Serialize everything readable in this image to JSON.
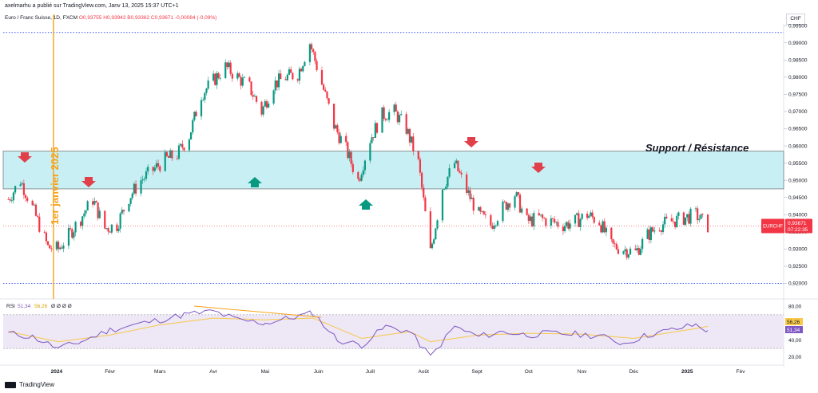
{
  "header": {
    "publish_line": "axelmarhu a publié sur TradingView.com, Janv 13, 2025 15:37 UTC+1"
  },
  "legend": {
    "symbol": "Euro / Franc Suisse, 1D, FXCM",
    "open": "O0,93755",
    "high": "H0,93943",
    "low": "B0,93362",
    "close": "C0,93671",
    "change": "-0,00084 (-0,09%)"
  },
  "currency_button": "CHF",
  "price_tag": {
    "symbol": "EURCHF",
    "price": "0,93671",
    "countdown": "07:22:35"
  },
  "annotations": {
    "support_resistance": "Support / Résistance",
    "date_marker": "1er janvier 2025"
  },
  "rsi_legend": {
    "label": "RSI",
    "rsi_value": "51,34",
    "ma_value": "56,26",
    "placeholders": "Ø Ø Ø Ø"
  },
  "rsi_tags": {
    "ma": "56,26",
    "rsi": "51,34"
  },
  "footer": {
    "brand": "TradingView"
  },
  "colors": {
    "up": "#089981",
    "down": "#f23645",
    "zone_fill": "#c8f0f4",
    "rsi_line": "#7e57c2",
    "rsi_ma": "#f7c948",
    "annotation_orange": "#f7a21b",
    "dotted_line": "#3d5afe"
  },
  "chart_data": [
    {
      "type": "line",
      "title": "",
      "series_name": "EURCHF",
      "x_tick_labels": [
        "2024",
        "Févr",
        "Mars",
        "Avr",
        "Mai",
        "Juin",
        "Juill",
        "Août",
        "Sept",
        "Oct",
        "Nov",
        "Déc",
        "2025",
        "Fév"
      ],
      "y_tick_labels": [
        "0,92000",
        "0,92500",
        "0,93000",
        "0,93500",
        "0,94000",
        "0,94500",
        "0,95000",
        "0,95500",
        "0,96000",
        "0,96500",
        "0,97000",
        "0,97500",
        "0,98000",
        "0,98500",
        "0,99000",
        "0,99500"
      ],
      "ylim": [
        0.9185,
        0.9955
      ],
      "support_resistance_zone": [
        0.9475,
        0.9585
      ],
      "horizontal_levels": [
        0.993,
        0.92
      ],
      "series": [
        {
          "name": "EURCHF close",
          "points": [
            [
              "2023-12-04",
              0.9445
            ],
            [
              "2023-12-11",
              0.95
            ],
            [
              "2023-12-18",
              0.942
            ],
            [
              "2023-12-27",
              0.9305
            ],
            [
              "2024-01-02",
              0.93
            ],
            [
              "2024-01-08",
              0.934
            ],
            [
              "2024-01-15",
              0.939
            ],
            [
              "2024-01-22",
              0.9445
            ],
            [
              "2024-01-29",
              0.936
            ],
            [
              "2024-02-05",
              0.937
            ],
            [
              "2024-02-12",
              0.945
            ],
            [
              "2024-02-19",
              0.95
            ],
            [
              "2024-02-26",
              0.953
            ],
            [
              "2024-03-04",
              0.956
            ],
            [
              "2024-03-11",
              0.9575
            ],
            [
              "2024-03-18",
              0.963
            ],
            [
              "2024-03-25",
              0.975
            ],
            [
              "2024-04-01",
              0.979
            ],
            [
              "2024-04-08",
              0.983
            ],
            [
              "2024-04-15",
              0.98
            ],
            [
              "2024-04-22",
              0.977
            ],
            [
              "2024-04-29",
              0.97
            ],
            [
              "2024-05-06",
              0.978
            ],
            [
              "2024-05-13",
              0.98
            ],
            [
              "2024-05-20",
              0.981
            ],
            [
              "2024-05-27",
              0.99
            ],
            [
              "2024-06-03",
              0.978
            ],
            [
              "2024-06-10",
              0.966
            ],
            [
              "2024-06-17",
              0.959
            ],
            [
              "2024-06-24",
              0.95
            ],
            [
              "2024-07-01",
              0.962
            ],
            [
              "2024-07-08",
              0.969
            ],
            [
              "2024-07-15",
              0.97
            ],
            [
              "2024-07-22",
              0.965
            ],
            [
              "2024-07-29",
              0.955
            ],
            [
              "2024-08-05",
              0.929
            ],
            [
              "2024-08-12",
              0.948
            ],
            [
              "2024-08-19",
              0.955
            ],
            [
              "2024-08-26",
              0.947
            ],
            [
              "2024-09-02",
              0.94
            ],
            [
              "2024-09-09",
              0.937
            ],
            [
              "2024-09-16",
              0.942
            ],
            [
              "2024-09-23",
              0.946
            ],
            [
              "2024-09-30",
              0.938
            ],
            [
              "2024-10-07",
              0.939
            ],
            [
              "2024-10-14",
              0.938
            ],
            [
              "2024-10-21",
              0.937
            ],
            [
              "2024-10-28",
              0.938
            ],
            [
              "2024-11-04",
              0.94
            ],
            [
              "2024-11-11",
              0.938
            ],
            [
              "2024-11-18",
              0.931
            ],
            [
              "2024-11-25",
              0.93
            ],
            [
              "2024-12-02",
              0.929
            ],
            [
              "2024-12-09",
              0.934
            ],
            [
              "2024-12-16",
              0.937
            ],
            [
              "2024-12-23",
              0.938
            ],
            [
              "2024-12-30",
              0.939
            ],
            [
              "2025-01-06",
              0.94
            ],
            [
              "2025-01-13",
              0.9367
            ]
          ]
        }
      ]
    },
    {
      "type": "line",
      "title": "",
      "y_tick_labels": [
        "20,00",
        "40,00",
        "60,00",
        "80,00"
      ],
      "ylim": [
        16,
        84
      ],
      "bands": [
        30,
        70
      ],
      "series": [
        {
          "name": "RSI",
          "points": [
            [
              "2023-12-04",
              48
            ],
            [
              "2023-12-18",
              44
            ],
            [
              "2024-01-02",
              30
            ],
            [
              "2024-01-15",
              38
            ],
            [
              "2024-02-01",
              52
            ],
            [
              "2024-02-15",
              58
            ],
            [
              "2024-03-01",
              64
            ],
            [
              "2024-03-15",
              70
            ],
            [
              "2024-04-01",
              74
            ],
            [
              "2024-04-15",
              64
            ],
            [
              "2024-05-01",
              60
            ],
            [
              "2024-05-15",
              66
            ],
            [
              "2024-05-29",
              72
            ],
            [
              "2024-06-12",
              40
            ],
            [
              "2024-06-26",
              34
            ],
            [
              "2024-07-10",
              56
            ],
            [
              "2024-07-24",
              50
            ],
            [
              "2024-08-05",
              20
            ],
            [
              "2024-08-19",
              56
            ],
            [
              "2024-09-02",
              44
            ],
            [
              "2024-09-16",
              50
            ],
            [
              "2024-09-30",
              46
            ],
            [
              "2024-10-14",
              48
            ],
            [
              "2024-10-28",
              47
            ],
            [
              "2024-11-11",
              45
            ],
            [
              "2024-11-25",
              36
            ],
            [
              "2024-12-09",
              46
            ],
            [
              "2024-12-23",
              52
            ],
            [
              "2025-01-06",
              58
            ],
            [
              "2025-01-13",
              51.34
            ]
          ]
        },
        {
          "name": "RSI-based MA",
          "points": [
            [
              "2023-12-04",
              50
            ],
            [
              "2024-01-02",
              38
            ],
            [
              "2024-02-01",
              46
            ],
            [
              "2024-03-01",
              58
            ],
            [
              "2024-04-01",
              66
            ],
            [
              "2024-05-01",
              64
            ],
            [
              "2024-05-29",
              66
            ],
            [
              "2024-06-26",
              42
            ],
            [
              "2024-07-24",
              50
            ],
            [
              "2024-08-05",
              38
            ],
            [
              "2024-09-02",
              46
            ],
            [
              "2024-10-01",
              48
            ],
            [
              "2024-11-01",
              47
            ],
            [
              "2024-12-01",
              42
            ],
            [
              "2025-01-01",
              52
            ],
            [
              "2025-01-13",
              56.26
            ]
          ]
        }
      ]
    }
  ]
}
